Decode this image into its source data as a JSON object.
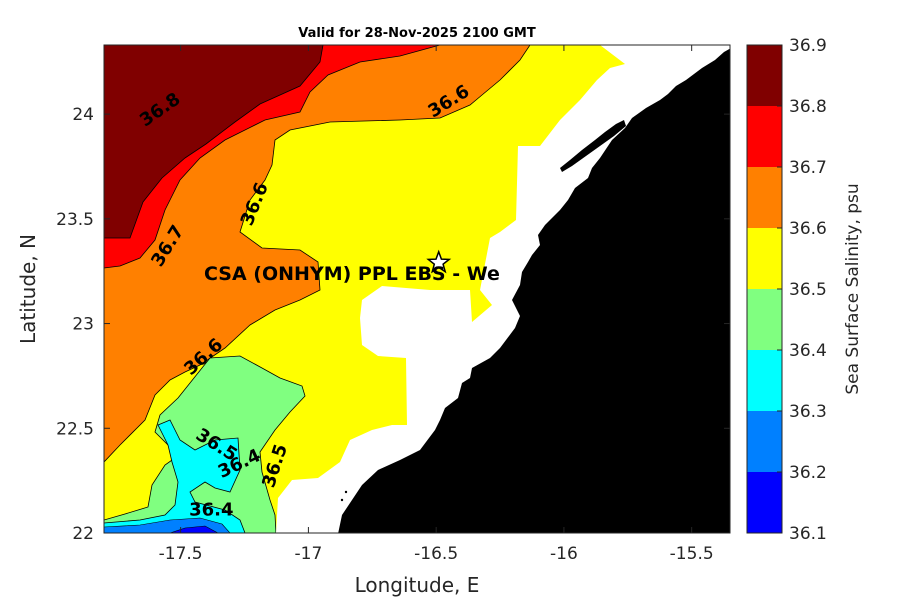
{
  "chart_data": {
    "type": "heatmap",
    "subtype": "filled-contour-map",
    "title": "Valid for 28-Nov-2025 2100 GMT",
    "xlabel": "Longitude, E",
    "ylabel": "Latitude, N",
    "xlim": [
      -17.8,
      -15.35
    ],
    "ylim": [
      22.0,
      24.33
    ],
    "xticks": [
      -17.5,
      -17,
      -16.5,
      -16,
      -15.5
    ],
    "yticks": [
      22,
      22.5,
      23,
      23.5,
      24
    ],
    "xtick_labels": [
      "-17.5",
      "-17",
      "-16.5",
      "-16",
      "-15.5"
    ],
    "ytick_labels": [
      "22",
      "22.5",
      "23",
      "23.5",
      "24"
    ],
    "colorbar": {
      "label": "Sea Surface Salinity, psu",
      "levels": [
        36.1,
        36.2,
        36.3,
        36.4,
        36.5,
        36.6,
        36.7,
        36.8,
        36.9
      ],
      "level_labels": [
        "36.1",
        "36.2",
        "36.3",
        "36.4",
        "36.5",
        "36.6",
        "36.7",
        "36.8",
        "36.9"
      ],
      "colors": [
        "#0000ff",
        "#0080ff",
        "#00ffff",
        "#80ff80",
        "#ffff00",
        "#ff8000",
        "#ff0000",
        "#800000"
      ],
      "bins": [
        "36.1-36.2",
        "36.2-36.3",
        "36.3-36.4",
        "36.4-36.5",
        "36.5-36.6",
        "36.6-36.7",
        "36.7-36.8",
        "36.8-36.9"
      ]
    },
    "contour_labels": [
      {
        "text": "36.8",
        "lon": -17.58,
        "lat": 24.02
      },
      {
        "text": "36.6",
        "lon": -16.45,
        "lat": 24.06
      },
      {
        "text": "36.6",
        "lon": -17.21,
        "lat": 23.57
      },
      {
        "text": "36.7",
        "lon": -17.55,
        "lat": 23.37
      },
      {
        "text": "36.6",
        "lon": -17.41,
        "lat": 22.84
      },
      {
        "text": "36.5",
        "lon": -17.36,
        "lat": 22.42
      },
      {
        "text": "36.4",
        "lon": -17.27,
        "lat": 22.33
      },
      {
        "text": "36.5",
        "lon": -17.13,
        "lat": 22.32
      },
      {
        "text": "36.4",
        "lon": -17.38,
        "lat": 22.11
      }
    ],
    "site_marker": {
      "label": "CSA (ONHYM) PPL EBS  - We",
      "lon": -16.49,
      "lat": 23.29,
      "symbol": "star"
    },
    "land_color": "#000000",
    "nodata_color": "#ffffff"
  }
}
